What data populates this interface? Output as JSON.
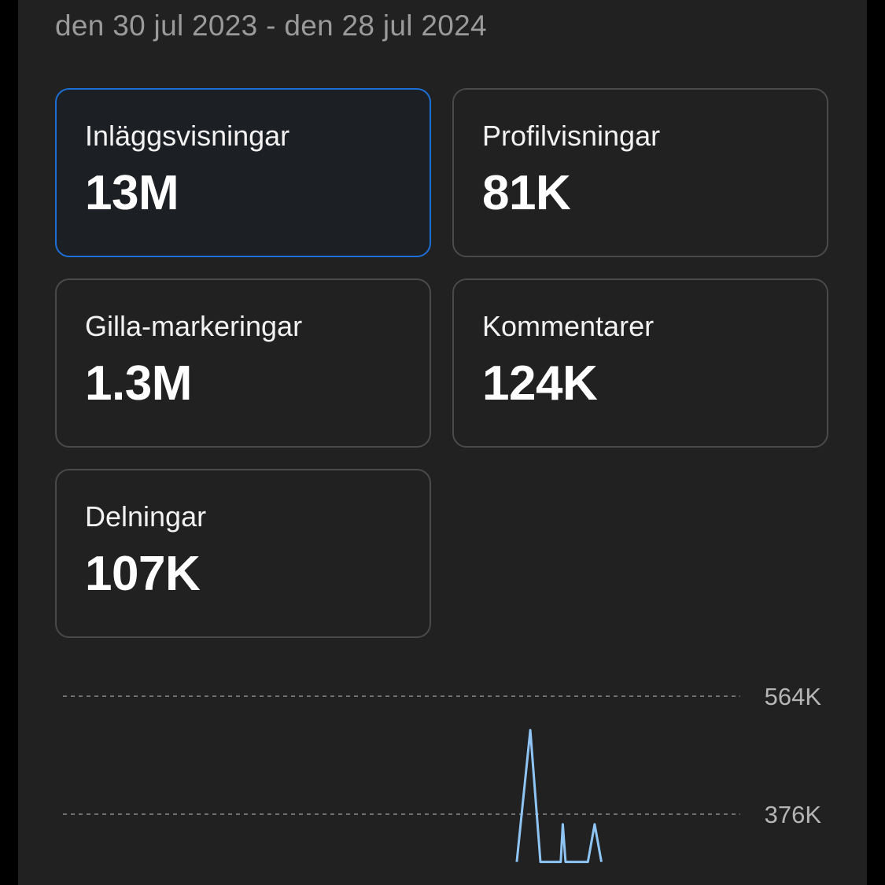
{
  "header": {
    "date_range": "den 30 jul 2023 - den 28 jul 2024"
  },
  "metrics": [
    {
      "label": "Inläggsvisningar",
      "value": "13M",
      "selected": true
    },
    {
      "label": "Profilvisningar",
      "value": "81K",
      "selected": false
    },
    {
      "label": "Gilla-markeringar",
      "value": "1.3M",
      "selected": false
    },
    {
      "label": "Kommentarer",
      "value": "124K",
      "selected": false
    },
    {
      "label": "Delningar",
      "value": "107K",
      "selected": false
    }
  ],
  "chart_data": {
    "type": "line",
    "y_ticks": [
      "564K",
      "376K"
    ],
    "y_tick_values": [
      564000,
      376000
    ],
    "grid": true,
    "series": [
      {
        "color": "#8ec5f5",
        "points": [
          {
            "x": 0.67,
            "y": 300000
          },
          {
            "x": 0.69,
            "y": 510000
          },
          {
            "x": 0.705,
            "y": 300000
          },
          {
            "x": 0.735,
            "y": 300000
          },
          {
            "x": 0.738,
            "y": 360000
          },
          {
            "x": 0.742,
            "y": 300000
          },
          {
            "x": 0.775,
            "y": 300000
          },
          {
            "x": 0.785,
            "y": 360000
          },
          {
            "x": 0.795,
            "y": 300000
          }
        ]
      }
    ]
  }
}
